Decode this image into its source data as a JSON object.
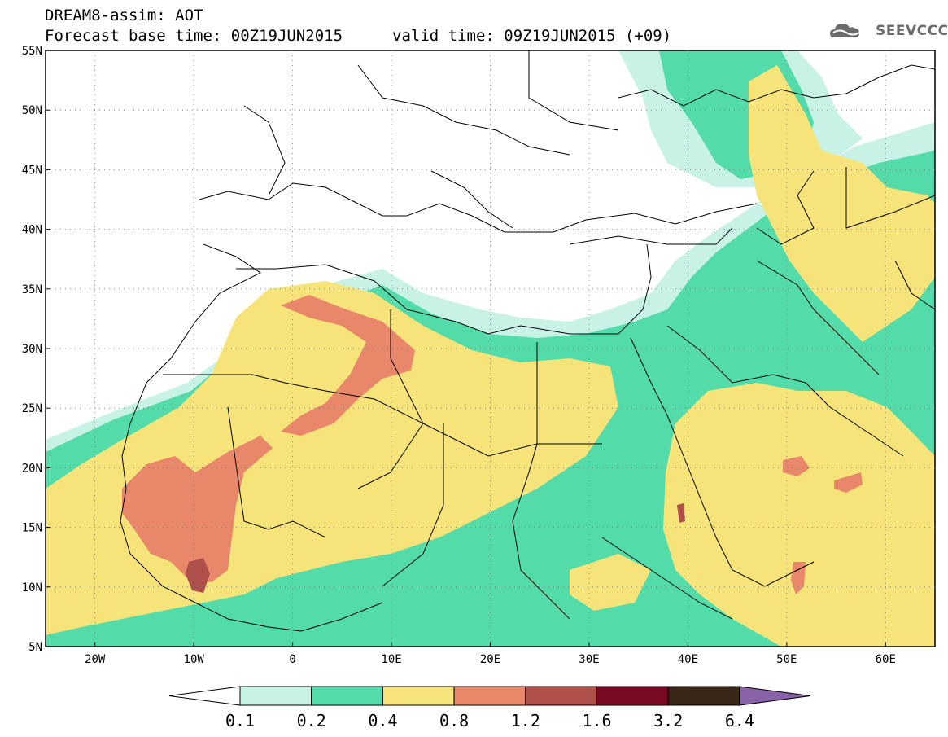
{
  "header": {
    "title": "DREAM8-assim: AOT",
    "forecast": "Forecast base time: 00Z19JUN2015",
    "valid": "valid time: 09Z19JUN2015 (+09)",
    "logo": "SEEVCCC"
  },
  "map": {
    "variable": "AOT",
    "lat_range": [
      5,
      55
    ],
    "lon_range": [
      -25,
      65
    ],
    "lat_labels": [
      "55N",
      "50N",
      "45N",
      "40N",
      "35N",
      "30N",
      "25N",
      "20N",
      "15N",
      "10N",
      "5N"
    ],
    "lon_labels": [
      "20W",
      "10W",
      "0",
      "10E",
      "20E",
      "30E",
      "40E",
      "50E",
      "60E"
    ]
  },
  "colorbar": {
    "labels": [
      "0.1",
      "0.2",
      "0.4",
      "0.8",
      "1.2",
      "1.6",
      "3.2",
      "6.4"
    ],
    "colors": [
      "#ffffff",
      "#c9f2e6",
      "#53dcaa",
      "#f6e47a",
      "#e8876a",
      "#b0504a",
      "#7a0a23",
      "#3a2616",
      "#8a62a8"
    ]
  }
}
